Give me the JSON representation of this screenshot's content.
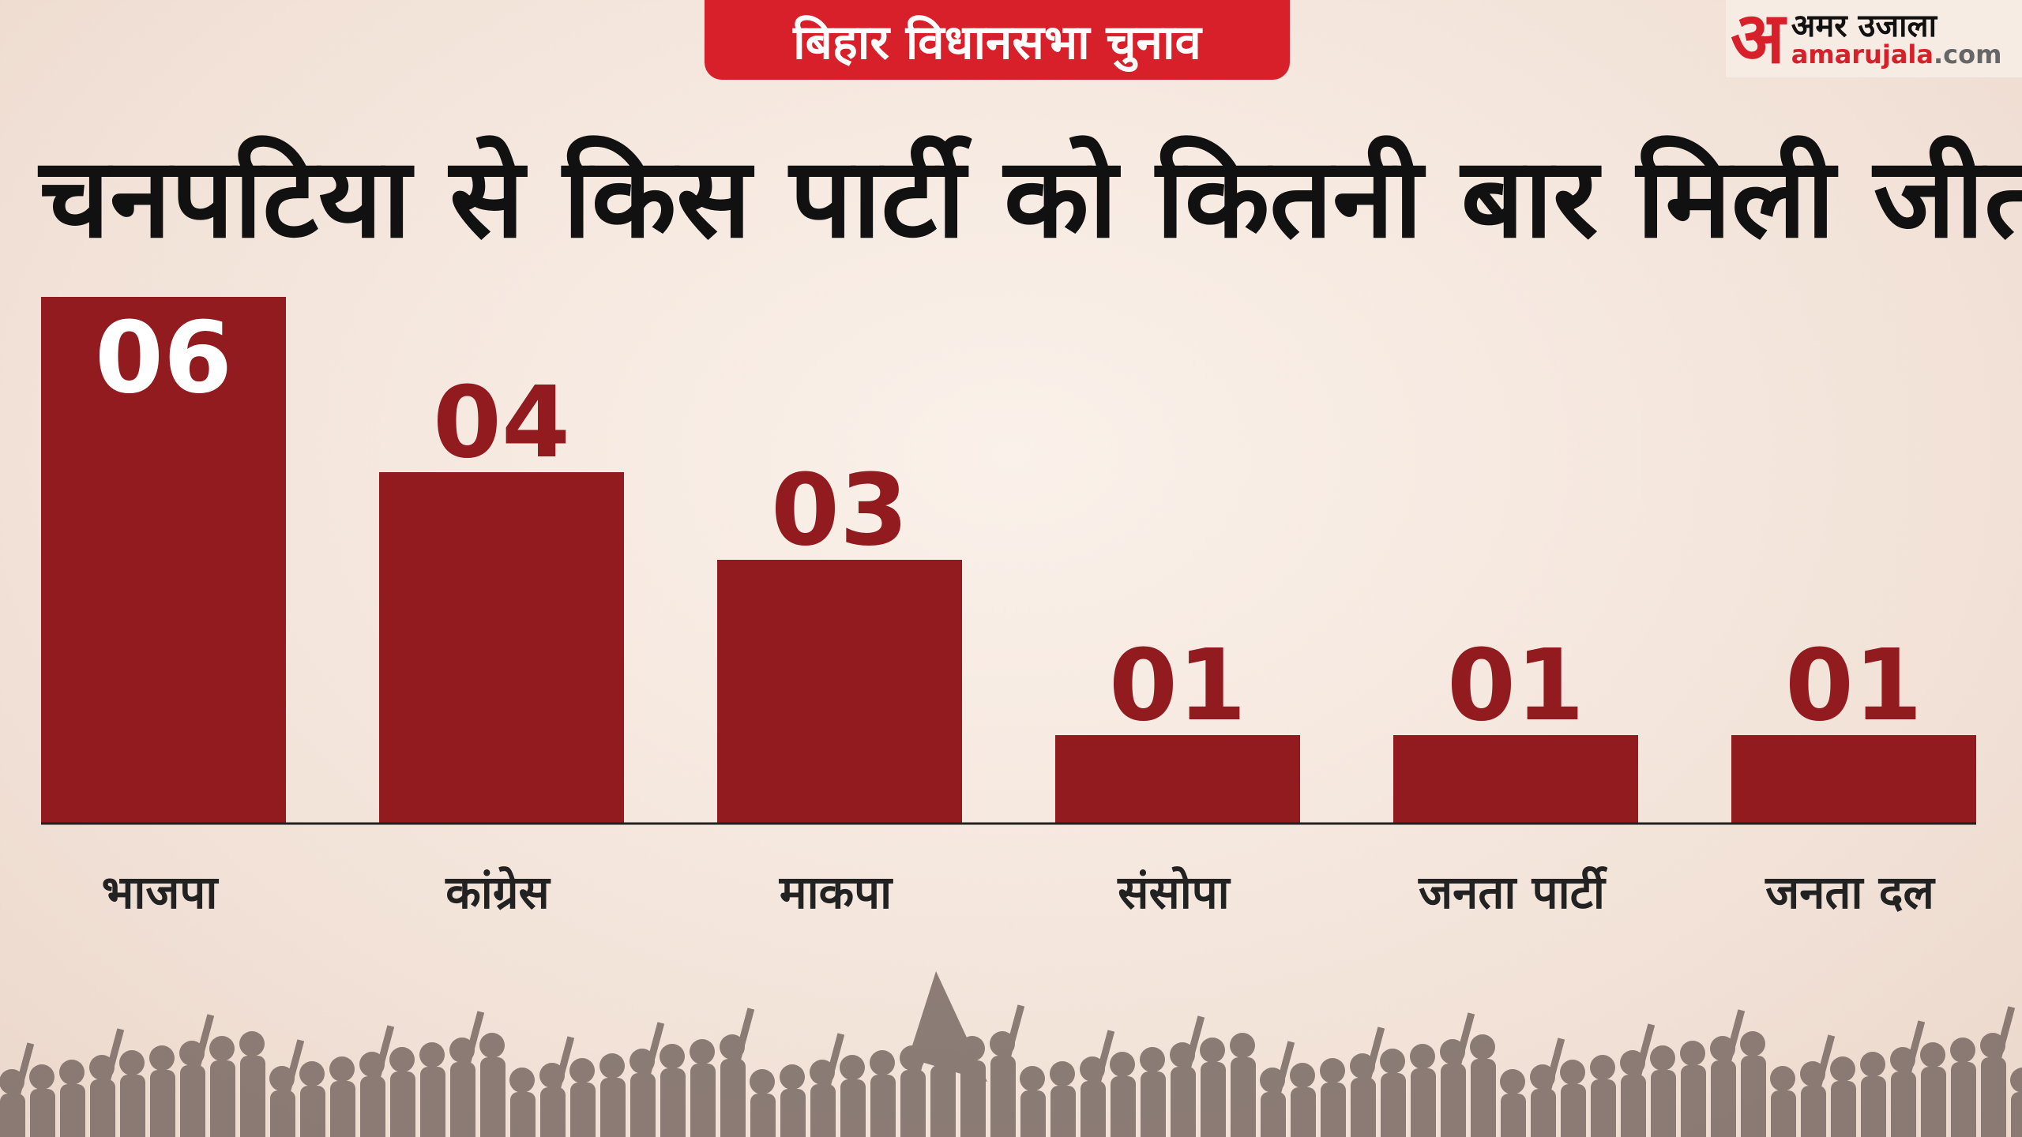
{
  "header": {
    "tag": "बिहार विधानसभा चुनाव"
  },
  "logo": {
    "mark": "अ",
    "hindi": "अमर उजाला",
    "domain_main": "amarujala",
    ".com": ".com"
  },
  "chart_data": {
    "type": "bar",
    "title": "चनपटिया से किस पार्टी को कितनी बार मिली जीत",
    "categories": [
      "भाजपा",
      "कांग्रेस",
      "माकपा",
      "संसोपा",
      "जनता पार्टी",
      "जनता दल"
    ],
    "values": [
      6,
      4,
      3,
      1,
      1,
      1
    ],
    "value_labels": [
      "06",
      "04",
      "03",
      "01",
      "01",
      "01"
    ],
    "xlabel": "",
    "ylabel": "",
    "ylim": [
      0,
      6
    ],
    "grid": false,
    "bar_color": "#921b20"
  }
}
